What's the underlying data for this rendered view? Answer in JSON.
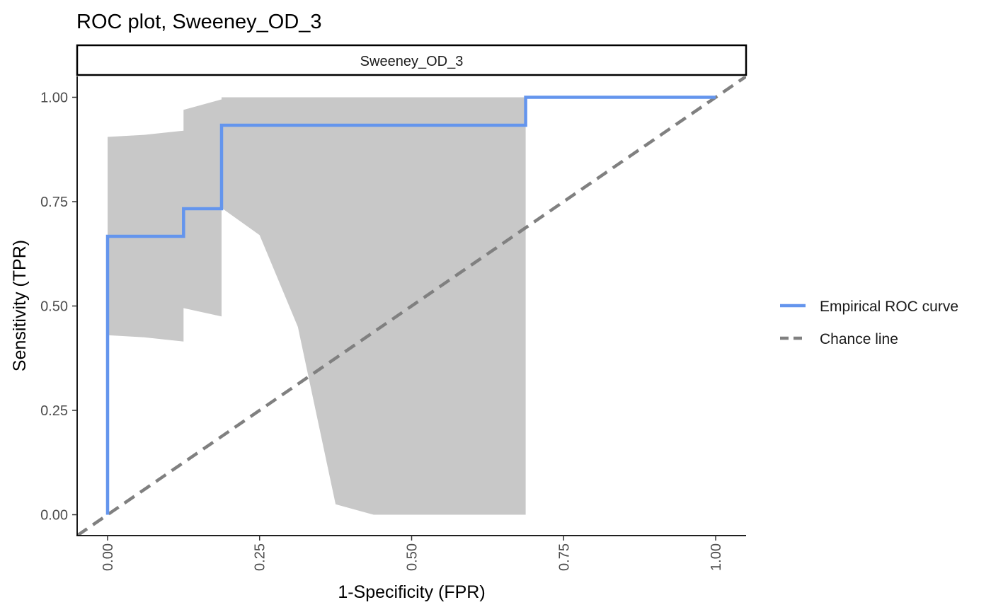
{
  "chart_data": {
    "type": "line",
    "title": "ROC plot, Sweeney_OD_3",
    "facet_label": "Sweeney_OD_3",
    "xlabel": "1-Specificity (FPR)",
    "ylabel": "Sensitivity (TPR)",
    "xlim": [
      -0.05,
      1.05
    ],
    "ylim": [
      -0.05,
      1.05
    ],
    "x_ticks": [
      0,
      0.25,
      0.5,
      0.75,
      1
    ],
    "x_tick_labels": [
      "0.00",
      "0.25",
      "0.50",
      "0.75",
      "1.00"
    ],
    "y_ticks": [
      0,
      0.25,
      0.5,
      0.75,
      1
    ],
    "y_tick_labels": [
      "0.00",
      "0.25",
      "0.50",
      "0.75",
      "1.00"
    ],
    "grid": false,
    "legend_position": "right",
    "colors": {
      "roc": "#6495ED",
      "chance": "#808080",
      "band": "#C8C8C8"
    },
    "series": [
      {
        "name": "Empirical ROC curve",
        "style": "solid",
        "x": [
          0,
          0,
          0.125,
          0.125,
          0.1875,
          0.1875,
          0.6875,
          0.6875,
          1.0
        ],
        "y": [
          0,
          0.667,
          0.667,
          0.733,
          0.733,
          0.933,
          0.933,
          1.0,
          1.0
        ]
      },
      {
        "name": "Chance line",
        "style": "dashed",
        "x": [
          -0.05,
          1.05
        ],
        "y": [
          -0.05,
          1.05
        ]
      }
    ],
    "confidence_band": {
      "upper": [
        {
          "x": 0,
          "y": 0.905
        },
        {
          "x": 0.06,
          "y": 0.91
        },
        {
          "x": 0.125,
          "y": 0.92
        },
        {
          "x": 0.125,
          "y": 0.97
        },
        {
          "x": 0.1875,
          "y": 0.995
        },
        {
          "x": 0.1875,
          "y": 1.0
        },
        {
          "x": 0.6875,
          "y": 1.0
        }
      ],
      "lower": [
        {
          "x": 0,
          "y": 0.43
        },
        {
          "x": 0.06,
          "y": 0.425
        },
        {
          "x": 0.125,
          "y": 0.415
        },
        {
          "x": 0.125,
          "y": 0.495
        },
        {
          "x": 0.1875,
          "y": 0.475
        },
        {
          "x": 0.1875,
          "y": 0.735
        },
        {
          "x": 0.25,
          "y": 0.67
        },
        {
          "x": 0.313,
          "y": 0.45
        },
        {
          "x": 0.375,
          "y": 0.025
        },
        {
          "x": 0.4375,
          "y": 0.0
        },
        {
          "x": 0.6875,
          "y": 0.0
        }
      ]
    }
  }
}
